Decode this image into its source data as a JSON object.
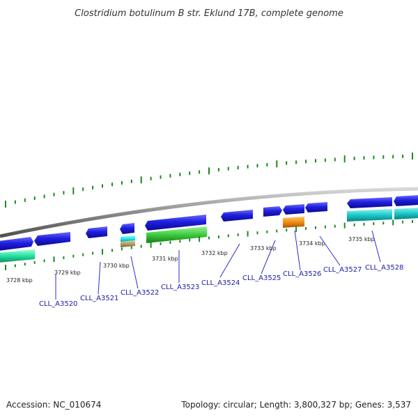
{
  "title": "Clostridium botulinum B str. Eklund 17B, complete genome",
  "footer": {
    "accession": "Accession: NC_010674",
    "summary": "Topology: circular; Length: 3,800,327 bp; Genes: 3,537"
  },
  "kbp_ticks": [
    "3728 kbp",
    "3729 kbp",
    "3730 kbp",
    "3731 kbp",
    "3732 kbp",
    "3733 kbp",
    "3734 kbp",
    "3735 kbp"
  ],
  "gene_labels": [
    "CLL_A3520",
    "CLL_A3521",
    "CLL_A3522",
    "CLL_A3523",
    "CLL_A3524",
    "CLL_A3525",
    "CLL_A3526",
    "CLL_A3527",
    "CLL_A3528"
  ],
  "colors": {
    "backbone": "#8c8c8c",
    "cds_forward": "#1f1fe0",
    "cds_teal": "#19c8c8",
    "cds_green": "#3ccc3c",
    "cds_orange": "#f08c14",
    "cds_tan": "#b4a064",
    "cds_mint": "#22e0a0",
    "gc_dash": "#1a8a1a",
    "label": "#1a1aa6",
    "leader": "#2a2ad0"
  }
}
